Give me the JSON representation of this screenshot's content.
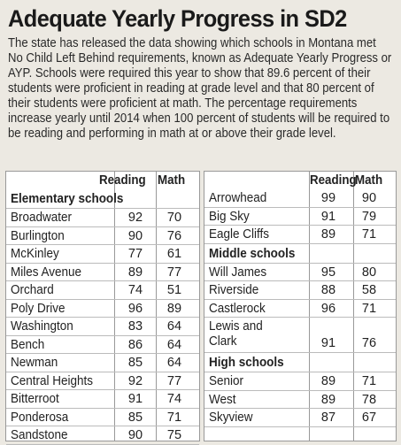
{
  "title": "Adequate Yearly Progress in SD2",
  "intro": "The state has released the data showing which schools in Montana met No Child Left Behind requirements, known as Adequate Yearly Progress or AYP. Schools were required this year to show that 89.6 percent of their students were proficient in reading at grade level and that 80 percent of their students were proficient at math. The percentage requirements increase yearly until 2014 when 100 percent of students will be required to be reading and performing in math at or above their grade level.",
  "headers": {
    "reading": "Reading",
    "math": "Math"
  },
  "elementary": {
    "label": "Elementary schools",
    "schools": [
      {
        "name": "Broadwater",
        "reading": "92",
        "math": "70"
      },
      {
        "name": "Burlington",
        "reading": "90",
        "math": "76"
      },
      {
        "name": "McKinley",
        "reading": "77",
        "math": "61"
      },
      {
        "name": "Miles Avenue",
        "reading": "89",
        "math": "77"
      },
      {
        "name": "Orchard",
        "reading": "74",
        "math": "51"
      },
      {
        "name": "Poly Drive",
        "reading": "96",
        "math": "89"
      },
      {
        "name": "Washington",
        "reading": "83",
        "math": "64"
      },
      {
        "name": "Bench",
        "reading": "86",
        "math": "64"
      },
      {
        "name": "Newman",
        "reading": "85",
        "math": "64"
      },
      {
        "name": "Central Heights",
        "reading": "92",
        "math": "77"
      },
      {
        "name": "Bitterroot",
        "reading": "91",
        "math": "74"
      },
      {
        "name": "Ponderosa",
        "reading": "85",
        "math": "71"
      },
      {
        "name": "Sandstone",
        "reading": "90",
        "math": "75"
      }
    ]
  },
  "elementary_cont": [
    {
      "name": "Arrowhead",
      "reading": "99",
      "math": "90"
    },
    {
      "name": "Big Sky",
      "reading": "91",
      "math": "79"
    },
    {
      "name": "Eagle Cliffs",
      "reading": "89",
      "math": "71"
    }
  ],
  "middle": {
    "label": "Middle schools",
    "schools": [
      {
        "name": "Will James",
        "reading": "95",
        "math": "80"
      },
      {
        "name": "Riverside",
        "reading": "88",
        "math": "58"
      },
      {
        "name": "Castlerock",
        "reading": "96",
        "math": "71"
      },
      {
        "name": "Lewis and Clark",
        "line1": "Lewis and",
        "line2": "Clark",
        "reading": "91",
        "math": "76"
      }
    ]
  },
  "high": {
    "label": "High schools",
    "schools": [
      {
        "name": "Senior",
        "reading": "89",
        "math": "71"
      },
      {
        "name": "West",
        "reading": "89",
        "math": "78"
      },
      {
        "name": "Skyview",
        "reading": "87",
        "math": "67"
      }
    ]
  }
}
